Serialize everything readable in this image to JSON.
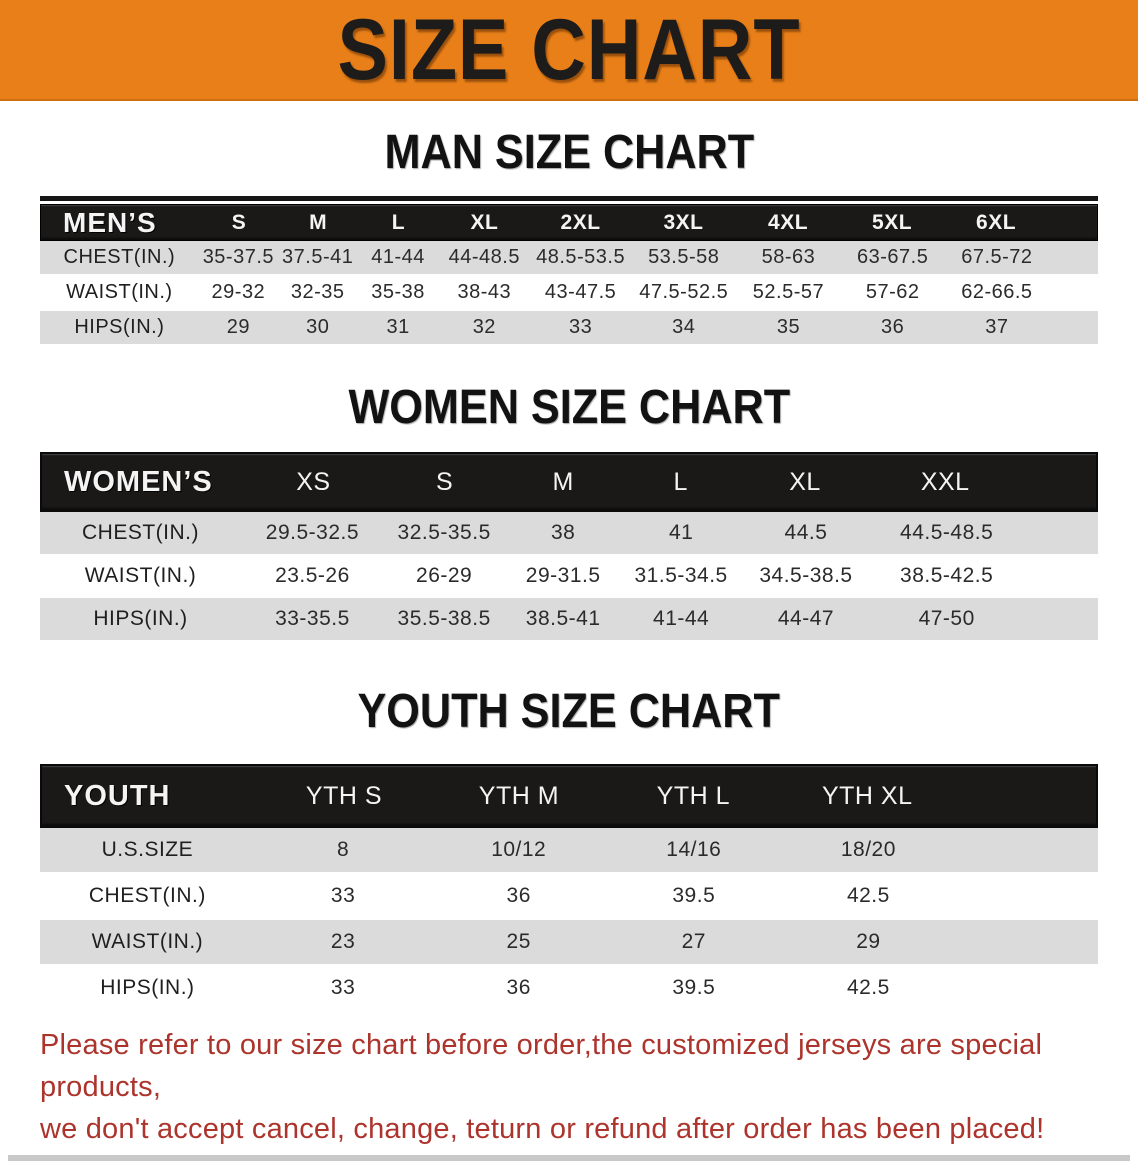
{
  "banner": {
    "title": "SIZE CHART"
  },
  "sections": [
    {
      "id": "men",
      "title": "MAN SIZE CHART",
      "header_label": "MEN’S",
      "columns": [
        "S",
        "M",
        "L",
        "XL",
        "2XL",
        "3XL",
        "4XL",
        "5XL",
        "6XL"
      ],
      "rows": [
        {
          "label": "CHEST(IN.)",
          "values": [
            "35-37.5",
            "37.5-41",
            "41-44",
            "44-48.5",
            "48.5-53.5",
            "53.5-58",
            "58-63",
            "63-67.5",
            "67.5-72"
          ]
        },
        {
          "label": "WAIST(IN.)",
          "values": [
            "29-32",
            "32-35",
            "35-38",
            "38-43",
            "43-47.5",
            "47.5-52.5",
            "52.5-57",
            "57-62",
            "62-66.5"
          ]
        },
        {
          "label": "HIPS(IN.)",
          "values": [
            "29",
            "30",
            "31",
            "32",
            "33",
            "34",
            "35",
            "36",
            "37"
          ]
        }
      ]
    },
    {
      "id": "women",
      "title": "WOMEN SIZE CHART",
      "header_label": "WOMEN’S",
      "columns": [
        "XS",
        "S",
        "M",
        "L",
        "XL",
        "XXL"
      ],
      "rows": [
        {
          "label": "CHEST(IN.)",
          "values": [
            "29.5-32.5",
            "32.5-35.5",
            "38",
            "41",
            "44.5",
            "44.5-48.5"
          ]
        },
        {
          "label": "WAIST(IN.)",
          "values": [
            "23.5-26",
            "26-29",
            "29-31.5",
            "31.5-34.5",
            "34.5-38.5",
            "38.5-42.5"
          ]
        },
        {
          "label": "HIPS(IN.)",
          "values": [
            "33-35.5",
            "35.5-38.5",
            "38.5-41",
            "41-44",
            "44-47",
            "47-50"
          ]
        }
      ]
    },
    {
      "id": "youth",
      "title": "YOUTH SIZE CHART",
      "header_label": "YOUTH",
      "columns": [
        "YTH S",
        "YTH M",
        "YTH L",
        "YTH XL"
      ],
      "rows": [
        {
          "label": "U.S.SIZE",
          "values": [
            "8",
            "10/12",
            "14/16",
            "18/20"
          ]
        },
        {
          "label": "CHEST(IN.)",
          "values": [
            "33",
            "36",
            "39.5",
            "42.5"
          ]
        },
        {
          "label": "WAIST(IN.)",
          "values": [
            "23",
            "25",
            "27",
            "29"
          ]
        },
        {
          "label": "HIPS(IN.)",
          "values": [
            "33",
            "36",
            "39.5",
            "42.5"
          ]
        }
      ]
    }
  ],
  "footer": {
    "line1": "Please refer to our size chart before order,the customized jerseys are special products,",
    "line2": "we don't accept cancel, change, teturn or refund after order has been placed!"
  },
  "colors": {
    "banner_orange": "#E87F18",
    "header_bar_black": "#1B1918",
    "row_stripe_gray": "#DBDBDB",
    "note_red": "#AC342C",
    "bottom_bar_gray": "#C9C9C9"
  }
}
